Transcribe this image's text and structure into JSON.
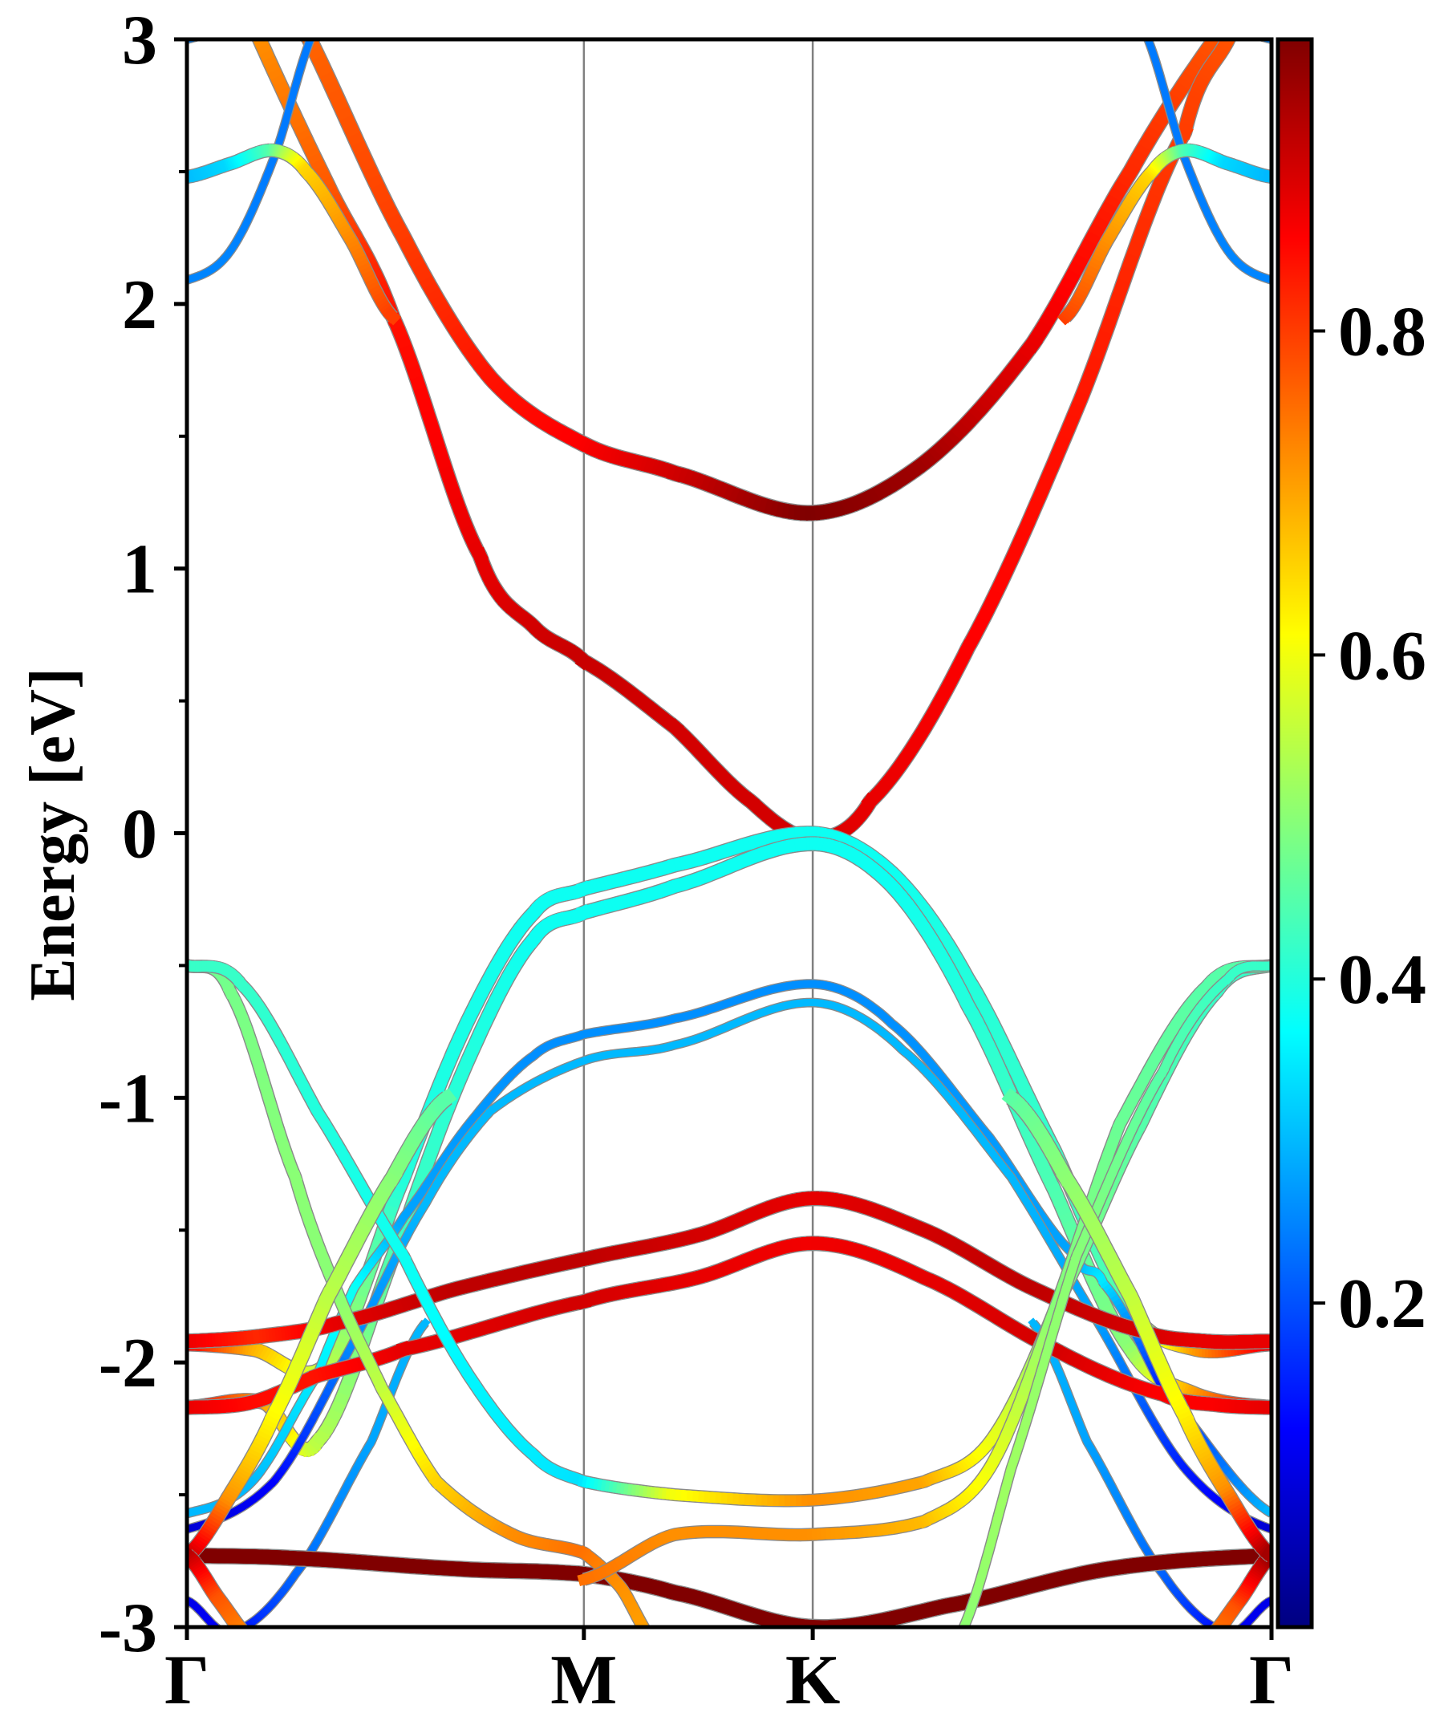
{
  "chart_data": {
    "type": "line",
    "subtype": "fat-band structure",
    "title": "",
    "xlabel": "",
    "ylabel": "Energy [eV]",
    "ylim": [
      -3,
      3
    ],
    "xlim": [
      0,
      1
    ],
    "grid": false,
    "x_unit": "fraction of k-path",
    "high_symmetry_points": [
      {
        "label": "Γ",
        "k": 0.0
      },
      {
        "label": "M",
        "k": 0.366
      },
      {
        "label": "K",
        "k": 0.577
      },
      {
        "label": "Γ",
        "k": 1.0
      }
    ],
    "yticks": {
      "values": [
        3,
        2,
        1,
        0,
        -1,
        -2,
        -3
      ],
      "labels": [
        "3",
        "2",
        "1",
        "0",
        "-1",
        "-2",
        "-3"
      ],
      "minor": [
        2.5,
        1.5,
        0.5,
        -0.5,
        -1.5,
        -2.5
      ]
    },
    "colorbar": {
      "colormap": "jet",
      "range": [
        0.0,
        0.98
      ],
      "ticks": [
        0.8,
        0.6,
        0.4,
        0.2
      ],
      "labels": [
        "0.8",
        "0.6",
        "0.4",
        "0.2"
      ],
      "placement": "right"
    },
    "series": [
      {
        "name": "cb-upper",
        "k": [
          0,
          0.113,
          0.2,
          0.28,
          0.366,
          0.45,
          0.577,
          0.68,
          0.78,
          0.87,
          0.948,
          1
        ],
        "energy": [
          3.7,
          3.0,
          2.25,
          1.72,
          1.47,
          1.36,
          1.21,
          1.4,
          1.85,
          2.5,
          3.0,
          3.4
        ],
        "weight": [
          0.74,
          0.76,
          0.8,
          0.84,
          0.86,
          0.9,
          0.98,
          0.95,
          0.88,
          0.82,
          0.78,
          0.76
        ]
      },
      {
        "name": "cb-lower",
        "k": [
          0,
          0.067,
          0.13,
          0.19,
          0.27,
          0.32,
          0.366,
          0.45,
          0.52,
          0.577,
          0.63,
          0.72,
          0.82,
          0.92,
          0.96,
          1
        ],
        "energy": [
          3.6,
          3.0,
          2.45,
          1.95,
          1.05,
          0.78,
          0.65,
          0.4,
          0.12,
          -0.02,
          0.12,
          0.7,
          1.6,
          2.65,
          3.0,
          3.3
        ],
        "weight": [
          0.7,
          0.72,
          0.77,
          0.84,
          0.88,
          0.9,
          0.91,
          0.9,
          0.9,
          0.9,
          0.88,
          0.86,
          0.84,
          0.8,
          0.78,
          0.75
        ]
      },
      {
        "name": "gamma-blue-left",
        "k": [
          0,
          0.04,
          0.08,
          0.12
        ],
        "energy": [
          2.09,
          2.2,
          2.55,
          3.05
        ],
        "weight": [
          0.25,
          0.25,
          0.24,
          0.24
        ]
      },
      {
        "name": "gamma-blue-right",
        "k": [
          0.88,
          0.92,
          0.96,
          1
        ],
        "energy": [
          3.05,
          2.55,
          2.2,
          2.09
        ],
        "weight": [
          0.24,
          0.24,
          0.25,
          0.25
        ]
      },
      {
        "name": "gamma-cyan-left",
        "k": [
          0,
          0.04,
          0.08,
          0.11,
          0.15,
          0.19
        ],
        "energy": [
          2.48,
          2.53,
          2.58,
          2.5,
          2.25,
          1.95
        ],
        "weight": [
          0.3,
          0.33,
          0.45,
          0.65,
          0.72,
          0.8
        ]
      },
      {
        "name": "gamma-cyan-right",
        "k": [
          0.81,
          0.85,
          0.89,
          0.92,
          0.96,
          1
        ],
        "energy": [
          1.95,
          2.25,
          2.5,
          2.58,
          2.53,
          2.48
        ],
        "weight": [
          0.8,
          0.72,
          0.65,
          0.45,
          0.33,
          0.3
        ]
      },
      {
        "name": "gamma-top-left",
        "k": [
          0,
          0.02,
          0.035
        ],
        "energy": [
          3.0,
          3.03,
          3.1
        ],
        "weight": [
          0.25,
          0.25,
          0.25
        ]
      },
      {
        "name": "gamma-top-right",
        "k": [
          0.965,
          0.98,
          1
        ],
        "energy": [
          3.1,
          3.03,
          3.0
        ],
        "weight": [
          0.25,
          0.25,
          0.25
        ]
      },
      {
        "name": "vb-cyan-1",
        "k": [
          0,
          0.06,
          0.13,
          0.2,
          0.26,
          0.32,
          0.366,
          0.45,
          0.577,
          0.65,
          0.72,
          0.8,
          0.87,
          0.93,
          1
        ],
        "energy": [
          -1.93,
          -1.95,
          -2.0,
          -1.3,
          -0.7,
          -0.3,
          -0.21,
          -0.12,
          0.0,
          -0.15,
          -0.55,
          -1.2,
          -1.8,
          -1.95,
          -1.93
        ],
        "weight": [
          0.88,
          0.7,
          0.55,
          0.4,
          0.39,
          0.38,
          0.38,
          0.38,
          0.38,
          0.38,
          0.4,
          0.42,
          0.45,
          0.7,
          0.88
        ]
      },
      {
        "name": "vb-cyan-2",
        "k": [
          0,
          0.07,
          0.12,
          0.2,
          0.26,
          0.32,
          0.366,
          0.45,
          0.577,
          0.65,
          0.72,
          0.8,
          0.87,
          0.93,
          1
        ],
        "energy": [
          -2.17,
          -2.15,
          -2.3,
          -1.5,
          -0.85,
          -0.4,
          -0.3,
          -0.2,
          -0.04,
          -0.2,
          -0.65,
          -1.35,
          -1.95,
          -2.12,
          -2.17
        ],
        "weight": [
          0.88,
          0.72,
          0.55,
          0.43,
          0.4,
          0.38,
          0.38,
          0.38,
          0.38,
          0.38,
          0.4,
          0.44,
          0.5,
          0.7,
          0.88
        ]
      },
      {
        "name": "vb-blue-1",
        "k": [
          0,
          0.06,
          0.12,
          0.154,
          0.2,
          0.26,
          0.32,
          0.366,
          0.45,
          0.577,
          0.65,
          0.74,
          0.82,
          0.845,
          0.9,
          1
        ],
        "energy": [
          -2.57,
          -2.45,
          -2.05,
          -1.72,
          -1.45,
          -1.1,
          -0.84,
          -0.76,
          -0.7,
          -0.57,
          -0.72,
          -1.15,
          -1.6,
          -1.7,
          -2.1,
          -2.57
        ],
        "weight": [
          0.3,
          0.3,
          0.35,
          0.38,
          0.28,
          0.27,
          0.26,
          0.26,
          0.26,
          0.26,
          0.26,
          0.27,
          0.28,
          0.35,
          0.15,
          0.3
        ]
      },
      {
        "name": "vb-blue-2",
        "k": [
          0,
          0.08,
          0.15,
          0.22,
          0.28,
          0.366,
          0.45,
          0.577,
          0.66,
          0.76,
          0.84,
          0.92,
          1
        ],
        "energy": [
          -2.63,
          -2.45,
          -1.95,
          -1.4,
          -1.05,
          -0.86,
          -0.8,
          -0.64,
          -0.82,
          -1.3,
          -1.85,
          -2.4,
          -2.63
        ],
        "weight": [
          0.08,
          0.12,
          0.25,
          0.3,
          0.3,
          0.3,
          0.3,
          0.3,
          0.3,
          0.3,
          0.28,
          0.15,
          0.08
        ]
      },
      {
        "name": "vb-blue-3",
        "k": [
          0,
          0.04,
          0.1,
          0.17,
          0.22
        ],
        "energy": [
          -2.9,
          -3.02,
          -2.8,
          -2.3,
          -1.85
        ],
        "weight": [
          0.1,
          0.12,
          0.22,
          0.28,
          0.3
        ]
      },
      {
        "name": "vb-blue-4",
        "k": [
          0.78,
          0.83,
          0.9,
          0.96,
          1
        ],
        "energy": [
          -1.85,
          -2.3,
          -2.8,
          -3.02,
          -2.9
        ],
        "weight": [
          0.3,
          0.28,
          0.22,
          0.12,
          0.1
        ]
      },
      {
        "name": "vb-red-1",
        "k": [
          0,
          0.07,
          0.14,
          0.25,
          0.366,
          0.47,
          0.577,
          0.68,
          0.78,
          0.88,
          0.94,
          1
        ],
        "energy": [
          -1.92,
          -1.9,
          -1.85,
          -1.72,
          -1.61,
          -1.52,
          -1.38,
          -1.5,
          -1.72,
          -1.88,
          -1.92,
          -1.92
        ],
        "weight": [
          0.88,
          0.82,
          0.88,
          0.92,
          0.92,
          0.9,
          0.88,
          0.9,
          0.92,
          0.9,
          0.88,
          0.88
        ]
      },
      {
        "name": "vb-red-2",
        "k": [
          0,
          0.06,
          0.12,
          0.2,
          0.366,
          0.47,
          0.577,
          0.68,
          0.8,
          0.9,
          0.95,
          1
        ],
        "energy": [
          -2.17,
          -2.15,
          -2.05,
          -1.95,
          -1.77,
          -1.68,
          -1.55,
          -1.68,
          -1.95,
          -2.12,
          -2.16,
          -2.17
        ],
        "weight": [
          0.88,
          0.85,
          0.84,
          0.88,
          0.9,
          0.88,
          0.87,
          0.88,
          0.9,
          0.86,
          0.86,
          0.88
        ]
      },
      {
        "name": "vb-darkred",
        "k": [
          0,
          0.1,
          0.25,
          0.366,
          0.45,
          0.577,
          0.7,
          0.85,
          1
        ],
        "energy": [
          -2.73,
          -2.74,
          -2.78,
          -2.8,
          -2.87,
          -3.0,
          -2.92,
          -2.78,
          -2.73
        ],
        "weight": [
          0.98,
          0.98,
          0.98,
          0.98,
          0.98,
          0.98,
          0.98,
          0.98,
          0.98
        ]
      },
      {
        "name": "vb-green-a",
        "k": [
          0,
          0.04,
          0.1,
          0.14,
          0.18,
          0.23,
          0.3,
          0.366,
          0.4,
          0.43
        ],
        "energy": [
          -0.5,
          -0.6,
          -1.3,
          -1.75,
          -2.1,
          -2.45,
          -2.65,
          -2.72,
          -2.85,
          -3.05
        ],
        "weight": [
          0.45,
          0.48,
          0.5,
          0.5,
          0.55,
          0.65,
          0.72,
          0.75,
          0.72,
          0.7
        ]
      },
      {
        "name": "vb-green-b",
        "k": [
          0,
          0.05,
          0.12,
          0.2,
          0.26,
          0.32,
          0.366,
          0.45,
          0.577,
          0.68,
          0.74,
          0.8,
          0.88,
          0.95,
          1
        ],
        "energy": [
          -0.5,
          -0.57,
          -1.05,
          -1.6,
          -2.05,
          -2.35,
          -2.45,
          -2.5,
          -2.52,
          -2.45,
          -2.3,
          -1.8,
          -1.1,
          -0.6,
          -0.5
        ],
        "weight": [
          0.42,
          0.42,
          0.4,
          0.38,
          0.36,
          0.35,
          0.34,
          0.6,
          0.72,
          0.7,
          0.6,
          0.5,
          0.45,
          0.42,
          0.42
        ]
      },
      {
        "name": "vb-green-c",
        "k": [
          0.366,
          0.45,
          0.577,
          0.68,
          0.74,
          0.8,
          0.86,
          0.94,
          1
        ],
        "energy": [
          -2.82,
          -2.65,
          -2.65,
          -2.6,
          -2.4,
          -1.8,
          -1.1,
          -0.58,
          -0.5
        ],
        "weight": [
          0.75,
          0.72,
          0.72,
          0.68,
          0.6,
          0.5,
          0.47,
          0.45,
          0.45
        ]
      },
      {
        "name": "vb-green-d",
        "k": [
          0.71,
          0.76,
          0.82,
          0.9,
          0.96,
          1
        ],
        "energy": [
          -3.05,
          -2.4,
          -1.6,
          -0.9,
          -0.55,
          -0.5
        ],
        "weight": [
          0.5,
          0.52,
          0.5,
          0.45,
          0.42,
          0.42
        ]
      },
      {
        "name": "vb-yellow-left",
        "k": [
          0,
          0.04,
          0.08,
          0.13,
          0.19,
          0.24
        ],
        "energy": [
          -2.73,
          -2.5,
          -2.2,
          -1.75,
          -1.3,
          -1.0
        ],
        "weight": [
          0.95,
          0.72,
          0.62,
          0.55,
          0.5,
          0.45
        ]
      },
      {
        "name": "vb-orange-left",
        "k": [
          0,
          0.03,
          0.06
        ],
        "energy": [
          -2.73,
          -2.9,
          -3.05
        ],
        "weight": [
          0.95,
          0.78,
          0.72
        ]
      },
      {
        "name": "vb-orange-right",
        "k": [
          0.94,
          0.97,
          1
        ],
        "energy": [
          -3.05,
          -2.9,
          -2.73
        ],
        "weight": [
          0.72,
          0.78,
          0.95
        ]
      },
      {
        "name": "vb-yellow-right",
        "k": [
          0.76,
          0.81,
          0.87,
          0.92,
          0.96,
          1
        ],
        "energy": [
          -1.0,
          -1.3,
          -1.75,
          -2.2,
          -2.5,
          -2.73
        ],
        "weight": [
          0.45,
          0.5,
          0.55,
          0.62,
          0.72,
          0.95
        ]
      }
    ]
  }
}
